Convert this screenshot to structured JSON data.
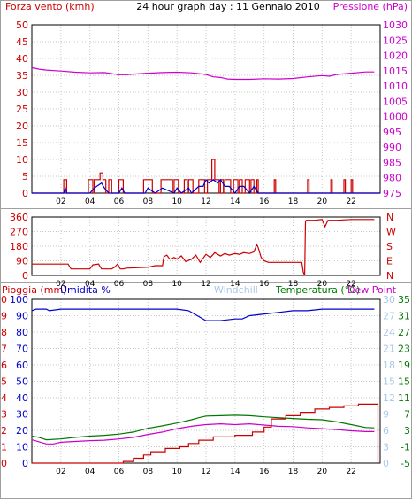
{
  "colors": {
    "red": "#cc0000",
    "magenta": "#cc00cc",
    "blue": "#0000cc",
    "green": "#007700",
    "gray": "#a0a0a0",
    "lightblue": "#a8c8e8",
    "black": "#000000",
    "background": "#ffffff"
  },
  "chart_data": [
    {
      "id": "wind-pressure",
      "type": "line",
      "title": "24 hour graph day : 11 Gennaio 2010",
      "left_axis_label": "Forza vento (kmh)",
      "right_axis_label": "Pressione (hPa)",
      "ylim_left": [
        0,
        50
      ],
      "yticks_left": [
        "0",
        "5",
        "10",
        "15",
        "20",
        "25",
        "30",
        "35",
        "40",
        "45",
        "50"
      ],
      "ylim_right": [
        975,
        1030
      ],
      "yticks_right": [
        "975",
        "980",
        "985",
        "990",
        "995",
        "1000",
        "1005",
        "1010",
        "1015",
        "1020",
        "1025",
        "1030"
      ],
      "xlim": [
        0,
        24
      ],
      "xticks": [
        "02",
        "04",
        "06",
        "08",
        "10",
        "12",
        "14",
        "16",
        "18",
        "20",
        "22"
      ],
      "grid": true,
      "series": [
        {
          "key": "pressure",
          "axis": "right",
          "color": "magenta",
          "x": [
            0,
            0.5,
            1,
            2,
            3,
            4,
            5,
            6,
            6.5,
            7,
            8,
            9,
            10,
            11,
            12,
            12.5,
            13,
            13.5,
            14,
            15,
            16,
            17,
            18,
            19,
            20,
            20.5,
            21,
            22,
            23,
            23.6
          ],
          "y": [
            1016,
            1015.5,
            1015.2,
            1014.9,
            1014.5,
            1014.3,
            1014.4,
            1013.7,
            1013.7,
            1013.9,
            1014.2,
            1014.4,
            1014.5,
            1014.3,
            1013.8,
            1013.0,
            1012.8,
            1012.3,
            1012.2,
            1012.2,
            1012.4,
            1012.3,
            1012.5,
            1013.0,
            1013.4,
            1013.2,
            1013.8,
            1014.2,
            1014.6,
            1014.6
          ]
        },
        {
          "key": "gust",
          "axis": "left",
          "color": "red",
          "step": true,
          "x": [
            0,
            2.2,
            2.3,
            2.4,
            3.9,
            4.0,
            4.2,
            4.3,
            4.6,
            4.7,
            4.8,
            4.9,
            5.0,
            5.1,
            5.3,
            5.4,
            5.5,
            5.6,
            6.0,
            6.1,
            6.3,
            6.4,
            7.7,
            7.8,
            8.0,
            8.1,
            8.3,
            8.4,
            8.9,
            9.0,
            9.7,
            9.8,
            10.0,
            10.1,
            10.5,
            10.6,
            10.7,
            10.8,
            11.0,
            11.1,
            11.5,
            11.6,
            11.8,
            11.9,
            12.1,
            12.2,
            12.4,
            12.5,
            12.6,
            12.7,
            12.8,
            12.9,
            13.0,
            13.1,
            13.2,
            13.3,
            13.6,
            13.7,
            13.9,
            14.0,
            14.2,
            14.3,
            14.4,
            14.5,
            14.7,
            14.8,
            15.0,
            15.1,
            15.2,
            15.3,
            15.5,
            15.6,
            16.7,
            16.8,
            19.0,
            19.1,
            19.3,
            20.6,
            20.7,
            20.9,
            21.5,
            21.6,
            21.8,
            22.0,
            22.1,
            22.3,
            24
          ],
          "y": [
            0,
            4,
            4,
            0,
            4,
            4,
            0,
            4,
            4,
            6,
            6,
            4,
            4,
            0,
            4,
            4,
            0,
            0,
            4,
            4,
            0,
            0,
            4,
            4,
            4,
            4,
            0,
            0,
            4,
            4,
            0,
            4,
            4,
            0,
            4,
            4,
            0,
            4,
            4,
            0,
            4,
            4,
            4,
            0,
            4,
            4,
            10,
            10,
            4,
            4,
            4,
            0,
            4,
            4,
            0,
            4,
            4,
            0,
            4,
            4,
            0,
            4,
            4,
            0,
            4,
            4,
            0,
            4,
            4,
            0,
            4,
            0,
            4,
            0,
            4,
            0,
            0,
            4,
            0,
            0,
            4,
            0,
            0,
            4,
            0,
            0,
            0
          ]
        },
        {
          "key": "wind",
          "axis": "left",
          "color": "blue",
          "x": [
            0,
            2.2,
            2.3,
            2.4,
            4.0,
            4.3,
            4.8,
            5.0,
            5.3,
            6.0,
            6.2,
            6.4,
            7.8,
            8.0,
            8.5,
            9.0,
            9.8,
            10.0,
            10.3,
            10.8,
            11.0,
            11.5,
            11.8,
            12.0,
            12.2,
            12.5,
            12.8,
            13.0,
            13.3,
            13.6,
            14.0,
            14.3,
            14.6,
            15.0,
            15.3,
            15.6,
            16.0,
            24
          ],
          "y": [
            0,
            0,
            1.5,
            0,
            0,
            1.5,
            3,
            1.5,
            0,
            0,
            1.5,
            0,
            0,
            1.5,
            0,
            1.5,
            0,
            1.5,
            0,
            1.5,
            0,
            2,
            2,
            4,
            3,
            4,
            3,
            4,
            2,
            2,
            0,
            2,
            2,
            0,
            2,
            0,
            0,
            0
          ]
        }
      ]
    },
    {
      "id": "wind-direction",
      "type": "line",
      "ylim_left": [
        0,
        360
      ],
      "yticks_left": [
        "0",
        "90",
        "180",
        "270",
        "360"
      ],
      "ylim_right": [
        0,
        360
      ],
      "yticks_right": [
        "N",
        "E",
        "S",
        "W",
        "N"
      ],
      "xlim": [
        0,
        24
      ],
      "xticks": [
        "02",
        "04",
        "06",
        "08",
        "10",
        "12",
        "14",
        "16",
        "18",
        "20",
        "22"
      ],
      "grid": true,
      "series": [
        {
          "key": "direction",
          "axis": "left",
          "color": "red",
          "x": [
            0,
            2.5,
            2.7,
            4.0,
            4.2,
            4.6,
            4.8,
            5.5,
            5.7,
            5.9,
            6.1,
            6.3,
            6.5,
            8.0,
            8.5,
            9.0,
            9.1,
            9.3,
            9.5,
            9.8,
            10.0,
            10.3,
            10.6,
            11.0,
            11.3,
            11.6,
            12.0,
            12.3,
            12.6,
            13.0,
            13.3,
            13.6,
            14.0,
            14.3,
            14.6,
            15.0,
            15.3,
            15.5,
            15.6,
            15.8,
            16.0,
            16.3,
            17.0,
            18.0,
            18.6,
            18.7,
            18.8,
            18.85,
            18.9,
            19.5,
            20.0,
            20.2,
            20.4,
            21.0,
            22.0,
            23.0,
            23.6
          ],
          "y": [
            70,
            70,
            40,
            40,
            65,
            70,
            40,
            40,
            50,
            70,
            40,
            40,
            45,
            50,
            60,
            60,
            115,
            125,
            100,
            110,
            100,
            120,
            85,
            100,
            125,
            80,
            130,
            110,
            140,
            120,
            135,
            125,
            135,
            130,
            140,
            135,
            145,
            190,
            170,
            110,
            90,
            80,
            80,
            80,
            80,
            20,
            0,
            330,
            340,
            340,
            345,
            300,
            340,
            340,
            345,
            345,
            345
          ]
        }
      ]
    },
    {
      "id": "rain-humidity-temp",
      "type": "line",
      "axis_labels": {
        "rain": "Pioggia (mm)",
        "humidity": "Umidita %",
        "windchill": "Windchill",
        "temperature": "Temperatura (°C)",
        "dewpoint": "Dew Point"
      },
      "ylim_rain": [
        0,
        10
      ],
      "yticks_rain": [
        "0",
        "1",
        "2",
        "3",
        "4",
        "5",
        "6",
        "7",
        "8",
        "9",
        "10"
      ],
      "ylim_humidity": [
        0,
        100
      ],
      "yticks_humidity": [
        "0",
        "10",
        "20",
        "30",
        "40",
        "50",
        "60",
        "70",
        "80",
        "90",
        "100"
      ],
      "yticks_windchill": [
        "0",
        "3",
        "6",
        "9",
        "12",
        "15",
        "18",
        "21",
        "24",
        "27",
        "30"
      ],
      "ylim_temperature": [
        -5,
        35
      ],
      "yticks_temperature": [
        "-5",
        "-1",
        "3",
        "7",
        "11",
        "15",
        "19",
        "23",
        "27",
        "31",
        "35"
      ],
      "xlim": [
        0,
        24
      ],
      "xticks": [
        "02",
        "04",
        "06",
        "08",
        "10",
        "12",
        "14",
        "16",
        "18",
        "20",
        "22"
      ],
      "grid": true,
      "series": [
        {
          "key": "humidity",
          "axis": "humidity",
          "color": "blue",
          "x": [
            0,
            0.3,
            1,
            1.2,
            2,
            4,
            6,
            8,
            10,
            10.8,
            11.2,
            11.6,
            12.0,
            12.5,
            13.0,
            14.0,
            14.5,
            15.0,
            16.0,
            17.0,
            18.0,
            19.0,
            20.0,
            22.0,
            23.6
          ],
          "y": [
            93,
            94,
            94,
            93,
            94,
            94,
            94,
            94,
            94,
            93,
            91,
            89,
            87,
            87,
            87,
            88,
            88,
            90,
            91,
            92,
            93,
            93,
            94,
            94,
            94
          ],
          "step": false
        },
        {
          "key": "temperature",
          "axis": "temperature",
          "color": "green",
          "x": [
            0,
            0.5,
            1,
            2,
            3,
            4,
            5,
            6,
            7,
            8,
            9,
            10,
            11,
            11.5,
            12,
            13,
            14,
            15,
            16,
            17,
            18,
            19,
            20,
            21,
            22,
            23,
            23.6
          ],
          "y": [
            1.6,
            1.3,
            0.7,
            0.9,
            1.3,
            1.6,
            1.8,
            2.1,
            2.6,
            3.5,
            4.1,
            4.8,
            5.6,
            6.1,
            6.5,
            6.6,
            6.7,
            6.6,
            6.3,
            6.1,
            5.9,
            5.7,
            5.6,
            5.1,
            4.4,
            3.7,
            3.6
          ]
        },
        {
          "key": "dewpoint",
          "axis": "temperature",
          "color": "magenta",
          "x": [
            0,
            0.5,
            1,
            1.5,
            2,
            3,
            4,
            5,
            6,
            7,
            8,
            9,
            10,
            11,
            11.5,
            12,
            13,
            14,
            15,
            16,
            17,
            18,
            19,
            20,
            21,
            22,
            23,
            23.6
          ],
          "y": [
            0.7,
            0.2,
            -0.3,
            -0.3,
            0.1,
            0.3,
            0.5,
            0.6,
            0.9,
            1.3,
            2.0,
            2.6,
            3.4,
            4.0,
            4.2,
            4.4,
            4.6,
            4.4,
            4.6,
            4.3,
            4.0,
            3.9,
            3.6,
            3.4,
            3.2,
            2.9,
            2.7,
            2.7
          ]
        },
        {
          "key": "rain",
          "axis": "rain",
          "color": "red",
          "step": true,
          "x": [
            0,
            6.3,
            7.0,
            7.7,
            8.2,
            9.2,
            10.2,
            10.8,
            11.5,
            12.5,
            14.0,
            15.2,
            16.0,
            16.5,
            17.5,
            18.5,
            19.5,
            20.5,
            21.5,
            22.5,
            23.8,
            23.85
          ],
          "y": [
            0,
            0.1,
            0.3,
            0.5,
            0.7,
            0.9,
            1.0,
            1.2,
            1.4,
            1.6,
            1.7,
            1.9,
            2.2,
            2.7,
            2.9,
            3.1,
            3.3,
            3.4,
            3.5,
            3.6,
            3.6,
            0
          ]
        }
      ]
    }
  ]
}
